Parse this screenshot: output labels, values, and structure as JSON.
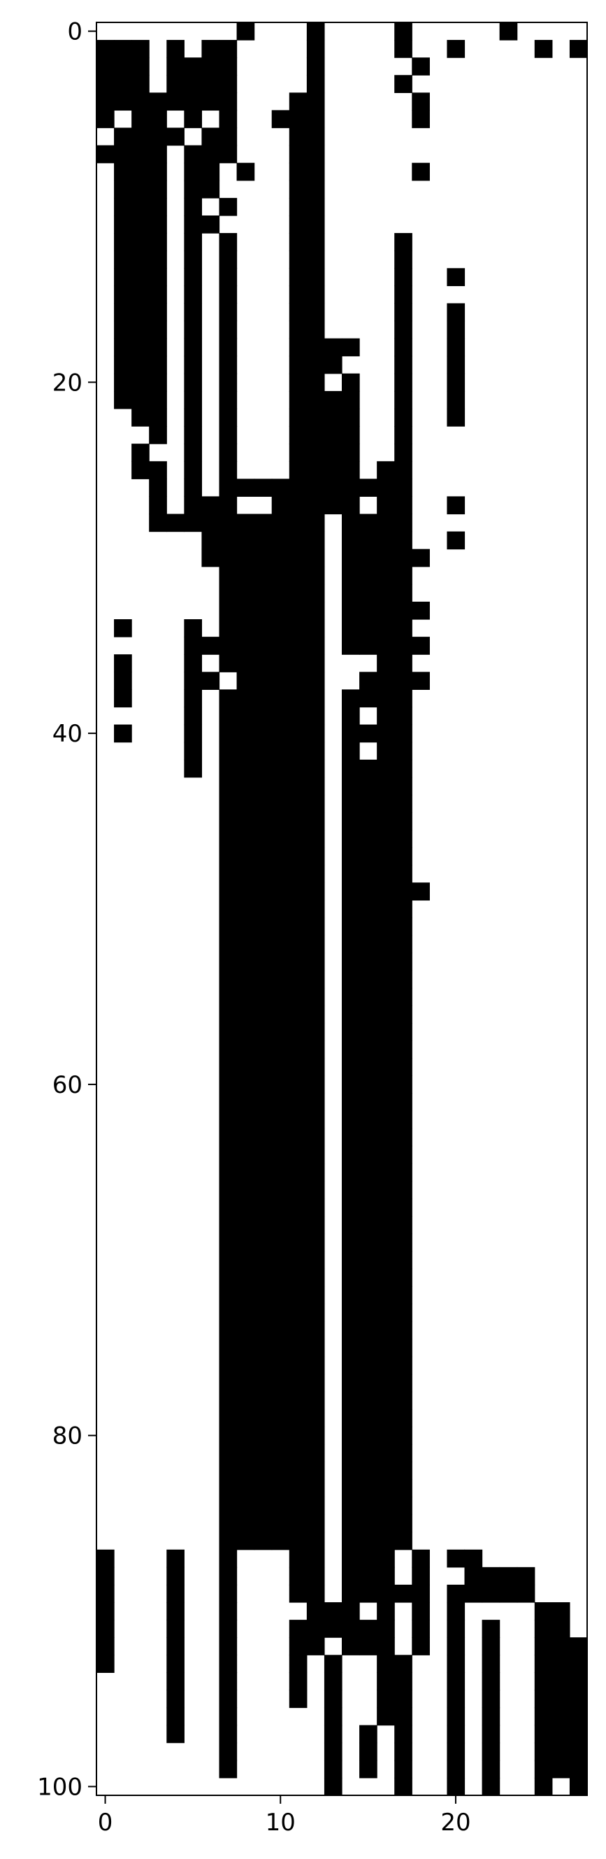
{
  "chart_data": {
    "type": "heatmap",
    "title": "",
    "xlabel": "",
    "ylabel": "",
    "colormap": [
      "#ffffff",
      "#000000"
    ],
    "xlim": [
      -0.5,
      27.5
    ],
    "ylim": [
      100.5,
      -0.5
    ],
    "x_ticks": [
      0,
      10,
      20
    ],
    "y_ticks": [
      0,
      20,
      40,
      60,
      80,
      100
    ],
    "x_tick_labels": [
      "0",
      "10",
      "20"
    ],
    "y_tick_labels": [
      "0",
      "20",
      "40",
      "60",
      "80",
      "100"
    ],
    "grid": false,
    "black_cells_by_row": [
      [
        8,
        12,
        17,
        23
      ],
      [
        0,
        1,
        2,
        4,
        6,
        7,
        12,
        17,
        20,
        25,
        27
      ],
      [
        0,
        1,
        2,
        4,
        5,
        6,
        7,
        12,
        18
      ],
      [
        0,
        1,
        2,
        4,
        5,
        6,
        7,
        12,
        17
      ],
      [
        0,
        1,
        2,
        3,
        4,
        5,
        6,
        7,
        11,
        12,
        18
      ],
      [
        0,
        2,
        3,
        5,
        7,
        10,
        11,
        12,
        18
      ],
      [
        1,
        2,
        3,
        4,
        6,
        7,
        11,
        12
      ],
      [
        0,
        1,
        2,
        3,
        5,
        6,
        7,
        11,
        12
      ],
      [
        1,
        2,
        3,
        5,
        6,
        8,
        11,
        12,
        18
      ],
      [
        1,
        2,
        3,
        5,
        6,
        11,
        12
      ],
      [
        1,
        2,
        3,
        5,
        7,
        11,
        12
      ],
      [
        1,
        2,
        3,
        5,
        6,
        11,
        12
      ],
      [
        1,
        2,
        3,
        5,
        7,
        11,
        12,
        17
      ],
      [
        1,
        2,
        3,
        5,
        7,
        11,
        12,
        17
      ],
      [
        1,
        2,
        3,
        5,
        7,
        11,
        12,
        17,
        20
      ],
      [
        1,
        2,
        3,
        5,
        7,
        11,
        12,
        17
      ],
      [
        1,
        2,
        3,
        5,
        7,
        11,
        12,
        17,
        20
      ],
      [
        1,
        2,
        3,
        5,
        7,
        11,
        12,
        17,
        20
      ],
      [
        1,
        2,
        3,
        5,
        7,
        11,
        12,
        13,
        14,
        17,
        20
      ],
      [
        1,
        2,
        3,
        5,
        7,
        11,
        12,
        13,
        17,
        20
      ],
      [
        1,
        2,
        3,
        5,
        7,
        11,
        12,
        14,
        17,
        20
      ],
      [
        1,
        2,
        3,
        5,
        7,
        11,
        12,
        13,
        14,
        17,
        20
      ],
      [
        2,
        3,
        5,
        7,
        11,
        12,
        13,
        14,
        17,
        20
      ],
      [
        3,
        5,
        7,
        11,
        12,
        13,
        14,
        17
      ],
      [
        2,
        5,
        7,
        11,
        12,
        13,
        14,
        17
      ],
      [
        2,
        3,
        5,
        7,
        11,
        12,
        13,
        14,
        16,
        17
      ],
      [
        3,
        5,
        7,
        8,
        9,
        10,
        11,
        12,
        13,
        14,
        15,
        16,
        17
      ],
      [
        3,
        5,
        6,
        7,
        10,
        11,
        12,
        13,
        14,
        16,
        17,
        20
      ],
      [
        3,
        4,
        5,
        6,
        7,
        8,
        9,
        10,
        11,
        12,
        14,
        15,
        16,
        17
      ],
      [
        6,
        7,
        8,
        9,
        10,
        11,
        12,
        14,
        15,
        16,
        17,
        20
      ],
      [
        6,
        7,
        8,
        9,
        10,
        11,
        12,
        14,
        15,
        16,
        17,
        18
      ],
      [
        7,
        8,
        9,
        10,
        11,
        12,
        14,
        15,
        16,
        17
      ],
      [
        7,
        8,
        9,
        10,
        11,
        12,
        14,
        15,
        16,
        17
      ],
      [
        7,
        8,
        9,
        10,
        11,
        12,
        14,
        15,
        16,
        17,
        18
      ],
      [
        1,
        5,
        7,
        8,
        9,
        10,
        11,
        12,
        14,
        15,
        16,
        17
      ],
      [
        5,
        6,
        7,
        8,
        9,
        10,
        11,
        12,
        14,
        15,
        16,
        17,
        18
      ],
      [
        1,
        5,
        7,
        8,
        9,
        10,
        11,
        12,
        16,
        17
      ],
      [
        1,
        5,
        6,
        8,
        9,
        10,
        11,
        12,
        15,
        16,
        17,
        18
      ],
      [
        1,
        5,
        7,
        8,
        9,
        10,
        11,
        12,
        14,
        15,
        16,
        17
      ],
      [
        5,
        7,
        8,
        9,
        10,
        11,
        12,
        14,
        16,
        17
      ],
      [
        1,
        5,
        7,
        8,
        9,
        10,
        11,
        12,
        14,
        15,
        16,
        17
      ],
      [
        5,
        7,
        8,
        9,
        10,
        11,
        12,
        14,
        16,
        17
      ],
      [
        5,
        7,
        8,
        9,
        10,
        11,
        12,
        14,
        15,
        16,
        17
      ],
      [
        7,
        8,
        9,
        10,
        11,
        12,
        14,
        15,
        16,
        17
      ],
      [
        7,
        8,
        9,
        10,
        11,
        12,
        14,
        15,
        16,
        17
      ],
      [
        7,
        8,
        9,
        10,
        11,
        12,
        14,
        15,
        16,
        17
      ],
      [
        7,
        8,
        9,
        10,
        11,
        12,
        14,
        15,
        16,
        17
      ],
      [
        7,
        8,
        9,
        10,
        11,
        12,
        14,
        15,
        16,
        17
      ],
      [
        7,
        8,
        9,
        10,
        11,
        12,
        14,
        15,
        16,
        17
      ],
      [
        7,
        8,
        9,
        10,
        11,
        12,
        14,
        15,
        16,
        17,
        18
      ],
      [
        7,
        8,
        9,
        10,
        11,
        12,
        14,
        15,
        16,
        17
      ],
      [
        7,
        8,
        9,
        10,
        11,
        12,
        14,
        15,
        16,
        17
      ],
      [
        7,
        8,
        9,
        10,
        11,
        12,
        14,
        15,
        16,
        17
      ],
      [
        7,
        8,
        9,
        10,
        11,
        12,
        14,
        15,
        16,
        17
      ],
      [
        7,
        8,
        9,
        10,
        11,
        12,
        14,
        15,
        16,
        17
      ],
      [
        7,
        8,
        9,
        10,
        11,
        12,
        14,
        15,
        16,
        17
      ],
      [
        7,
        8,
        9,
        10,
        11,
        12,
        14,
        15,
        16,
        17
      ],
      [
        7,
        8,
        9,
        10,
        11,
        12,
        14,
        15,
        16,
        17
      ],
      [
        7,
        8,
        9,
        10,
        11,
        12,
        14,
        15,
        16,
        17
      ],
      [
        7,
        8,
        9,
        10,
        11,
        12,
        14,
        15,
        16,
        17
      ],
      [
        7,
        8,
        9,
        10,
        11,
        12,
        14,
        15,
        16,
        17
      ],
      [
        7,
        8,
        9,
        10,
        11,
        12,
        14,
        15,
        16,
        17
      ],
      [
        7,
        8,
        9,
        10,
        11,
        12,
        14,
        15,
        16,
        17
      ],
      [
        7,
        8,
        9,
        10,
        11,
        12,
        14,
        15,
        16,
        17
      ],
      [
        7,
        8,
        9,
        10,
        11,
        12,
        14,
        15,
        16,
        17
      ],
      [
        7,
        8,
        9,
        10,
        11,
        12,
        14,
        15,
        16,
        17
      ],
      [
        7,
        8,
        9,
        10,
        11,
        12,
        14,
        15,
        16,
        17
      ],
      [
        7,
        8,
        9,
        10,
        11,
        12,
        14,
        15,
        16,
        17
      ],
      [
        7,
        8,
        9,
        10,
        11,
        12,
        14,
        15,
        16,
        17
      ],
      [
        7,
        8,
        9,
        10,
        11,
        12,
        14,
        15,
        16,
        17
      ],
      [
        7,
        8,
        9,
        10,
        11,
        12,
        14,
        15,
        16,
        17
      ],
      [
        7,
        8,
        9,
        10,
        11,
        12,
        14,
        15,
        16,
        17
      ],
      [
        7,
        8,
        9,
        10,
        11,
        12,
        14,
        15,
        16,
        17
      ],
      [
        7,
        8,
        9,
        10,
        11,
        12,
        14,
        15,
        16,
        17
      ],
      [
        7,
        8,
        9,
        10,
        11,
        12,
        14,
        15,
        16,
        17
      ],
      [
        7,
        8,
        9,
        10,
        11,
        12,
        14,
        15,
        16,
        17
      ],
      [
        7,
        8,
        9,
        10,
        11,
        12,
        14,
        15,
        16,
        17
      ],
      [
        7,
        8,
        9,
        10,
        11,
        12,
        14,
        15,
        16,
        17
      ],
      [
        7,
        8,
        9,
        10,
        11,
        12,
        14,
        15,
        16,
        17
      ],
      [
        7,
        8,
        9,
        10,
        11,
        12,
        14,
        15,
        16,
        17
      ],
      [
        7,
        8,
        9,
        10,
        11,
        12,
        14,
        15,
        16,
        17
      ],
      [
        7,
        8,
        9,
        10,
        11,
        12,
        14,
        15,
        16,
        17
      ],
      [
        7,
        8,
        9,
        10,
        11,
        12,
        14,
        15,
        16,
        17
      ],
      [
        7,
        8,
        9,
        10,
        11,
        12,
        14,
        15,
        16,
        17
      ],
      [
        7,
        8,
        9,
        10,
        11,
        12,
        14,
        15,
        16,
        17
      ],
      [
        7,
        8,
        9,
        10,
        11,
        12,
        14,
        15,
        16,
        17
      ],
      [
        7,
        8,
        9,
        10,
        11,
        12,
        14,
        15,
        16,
        17
      ],
      [
        0,
        4,
        7,
        11,
        12,
        14,
        15,
        16,
        18,
        20,
        21
      ],
      [
        0,
        4,
        7,
        11,
        12,
        14,
        15,
        16,
        18,
        21,
        22,
        23,
        24
      ],
      [
        0,
        4,
        7,
        11,
        12,
        14,
        15,
        16,
        17,
        18,
        20,
        21,
        22,
        23,
        24
      ],
      [
        0,
        4,
        7,
        12,
        13,
        14,
        16,
        18,
        20,
        25,
        26
      ],
      [
        0,
        4,
        7,
        11,
        12,
        13,
        14,
        15,
        16,
        18,
        20,
        22,
        25,
        26
      ],
      [
        0,
        4,
        7,
        11,
        12,
        14,
        15,
        16,
        18,
        20,
        22,
        25,
        26,
        27
      ],
      [
        0,
        4,
        7,
        11,
        13,
        16,
        17,
        20,
        22,
        25,
        26,
        27
      ],
      [
        4,
        7,
        11,
        13,
        16,
        17,
        20,
        22,
        25,
        26,
        27
      ],
      [
        4,
        7,
        11,
        13,
        16,
        17,
        20,
        22,
        25,
        26,
        27
      ],
      [
        4,
        7,
        13,
        16,
        17,
        20,
        22,
        25,
        26,
        27
      ],
      [
        4,
        7,
        13,
        15,
        17,
        20,
        22,
        25,
        26,
        27
      ],
      [
        7,
        13,
        15,
        17,
        20,
        22,
        25,
        26,
        27
      ],
      [
        7,
        13,
        15,
        17,
        20,
        22,
        25,
        26,
        27
      ],
      [
        13,
        17,
        20,
        22,
        25,
        27
      ]
    ]
  }
}
